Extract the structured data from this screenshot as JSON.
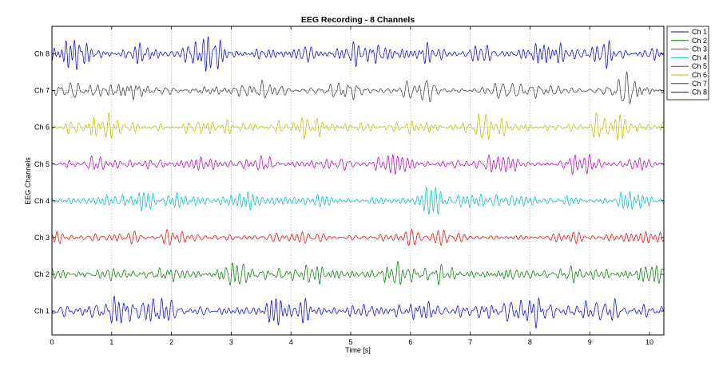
{
  "chart_data": {
    "type": "line",
    "title": "EEG Recording - 8 Channels",
    "xlabel": "Time [s]",
    "ylabel": "EEG Channels",
    "xlim": [
      0,
      10.24
    ],
    "x_ticks": [
      0,
      1,
      2,
      3,
      4,
      5,
      6,
      7,
      8,
      9,
      10
    ],
    "x_tick_labels": [
      "0",
      "1",
      "2",
      "3",
      "4",
      "5",
      "6",
      "7",
      "8",
      "9",
      "10"
    ],
    "y_ticks": [
      1,
      2,
      3,
      4,
      5,
      6,
      7,
      8
    ],
    "y_tick_labels": [
      "Ch 1",
      "Ch 2",
      "Ch 3",
      "Ch 4",
      "Ch 5",
      "Ch 6",
      "Ch 7",
      "Ch 8"
    ],
    "grid": true,
    "legend_position": "top-right outside",
    "series": [
      {
        "name": "Ch 1",
        "color": "#0000ff",
        "offset": 1,
        "amplitude": 0.32,
        "base_hz": 10.5
      },
      {
        "name": "Ch 2",
        "color": "#008000",
        "offset": 2,
        "amplitude": 0.26,
        "base_hz": 11
      },
      {
        "name": "Ch 3",
        "color": "#ff0000",
        "offset": 3,
        "amplitude": 0.22,
        "base_hz": 9.5
      },
      {
        "name": "Ch 4",
        "color": "#00bfbf",
        "offset": 4,
        "amplitude": 0.24,
        "base_hz": 10
      },
      {
        "name": "Ch 5",
        "color": "#bf00bf",
        "offset": 5,
        "amplitude": 0.22,
        "base_hz": 10.8
      },
      {
        "name": "Ch 6",
        "color": "#bfbf00",
        "offset": 6,
        "amplitude": 0.24,
        "base_hz": 11.5
      },
      {
        "name": "Ch 7",
        "color": "#404040",
        "offset": 7,
        "amplitude": 0.25,
        "base_hz": 10.2
      },
      {
        "name": "Ch 8",
        "color": "#0000ff",
        "offset": 8,
        "amplitude": 0.28,
        "base_hz": 11.2
      }
    ]
  }
}
